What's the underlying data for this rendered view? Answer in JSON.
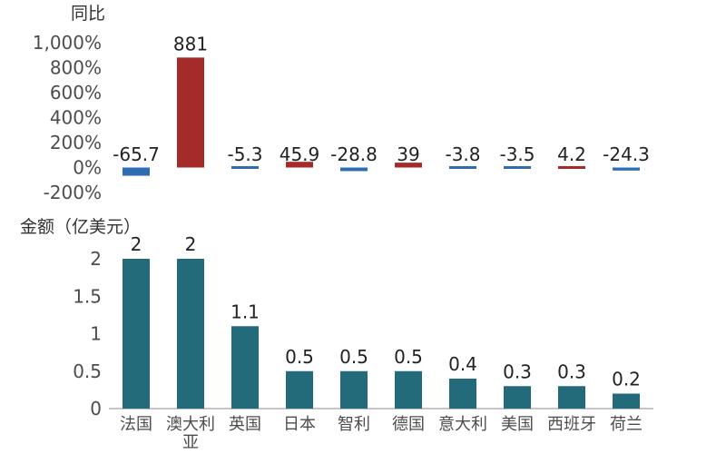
{
  "chart_data": [
    {
      "type": "bar",
      "ylabel": "同比",
      "categories": [
        "法国",
        "澳大利亚",
        "英国",
        "日本",
        "智利",
        "德国",
        "意大利",
        "美国",
        "西班牙",
        "荷兰"
      ],
      "values": [
        -65.7,
        881,
        -5.3,
        45.9,
        -28.8,
        39,
        -3.8,
        -3.5,
        4.2,
        -24.3
      ],
      "data_labels": [
        "-65.7",
        "881",
        "-5.3",
        "45.9",
        "-28.8",
        "39",
        "-3.8",
        "-3.5",
        "4.2",
        "-24.3"
      ],
      "y_ticks": [
        "1,000%",
        "800%",
        "600%",
        "400%",
        "200%",
        "0%",
        "-200%"
      ],
      "ylim": [
        -200,
        1000
      ],
      "colors": {
        "positive": "#a52a2a",
        "negative": "#2f6db3"
      }
    },
    {
      "type": "bar",
      "ylabel": "金额（亿美元）",
      "categories": [
        "法国",
        "澳大利亚",
        "英国",
        "日本",
        "智利",
        "德国",
        "意大利",
        "美国",
        "西班牙",
        "荷兰"
      ],
      "category_lines": [
        [
          "法国"
        ],
        [
          "澳大利",
          "亚"
        ],
        [
          "英国"
        ],
        [
          "日本"
        ],
        [
          "智利"
        ],
        [
          "德国"
        ],
        [
          "意大利"
        ],
        [
          "美国"
        ],
        [
          "西班牙"
        ],
        [
          "荷兰"
        ]
      ],
      "values": [
        2,
        2,
        1.1,
        0.5,
        0.5,
        0.5,
        0.4,
        0.3,
        0.3,
        0.2
      ],
      "data_labels": [
        "2",
        "2",
        "1.1",
        "0.5",
        "0.5",
        "0.5",
        "0.4",
        "0.3",
        "0.3",
        "0.2"
      ],
      "y_ticks": [
        "2",
        "1.5",
        "1",
        "0.5",
        "0"
      ],
      "ylim": [
        0,
        2
      ],
      "colors": {
        "bar": "#236a7a"
      }
    }
  ]
}
